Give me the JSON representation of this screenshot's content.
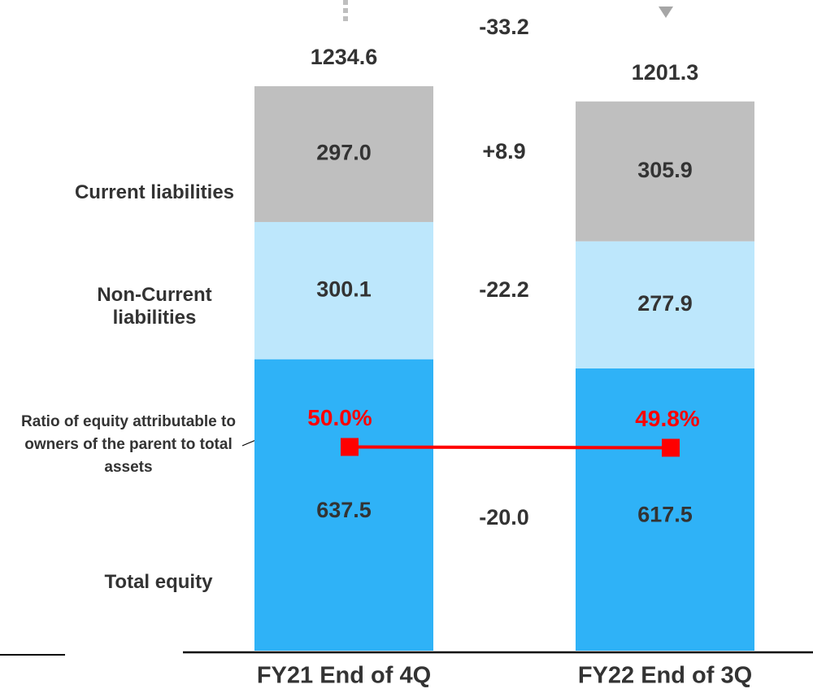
{
  "chart_data": {
    "type": "stacked_bar",
    "categories": [
      "FY21 End of 4Q",
      "FY22 End of 3Q"
    ],
    "series": [
      {
        "name": "Total equity",
        "color": "#2fb2f7",
        "values": [
          637.5,
          617.5
        ],
        "value_labels": [
          "637.5",
          "617.5"
        ],
        "change": -20.0,
        "change_label": "-20.0"
      },
      {
        "name": "Non-Current liabilities",
        "color": "#bde7fc",
        "values": [
          300.1,
          277.9
        ],
        "value_labels": [
          "300.1",
          "277.9"
        ],
        "change": -22.2,
        "change_label": "-22.2"
      },
      {
        "name": "Current liabilities",
        "color": "#bfbfbf",
        "values": [
          297.0,
          305.9
        ],
        "value_labels": [
          "297.0",
          "305.9"
        ],
        "change": 8.9,
        "change_label": "+8.9"
      }
    ],
    "totals": [
      1234.6,
      1201.3
    ],
    "total_change": -33.2,
    "ratio": {
      "name": "Ratio of equity attributable to owners of the parent to total assets",
      "color": "#ff0000",
      "values": [
        50.0,
        49.8
      ],
      "value_labels": [
        "50.0%",
        "49.8%"
      ]
    }
  }
}
